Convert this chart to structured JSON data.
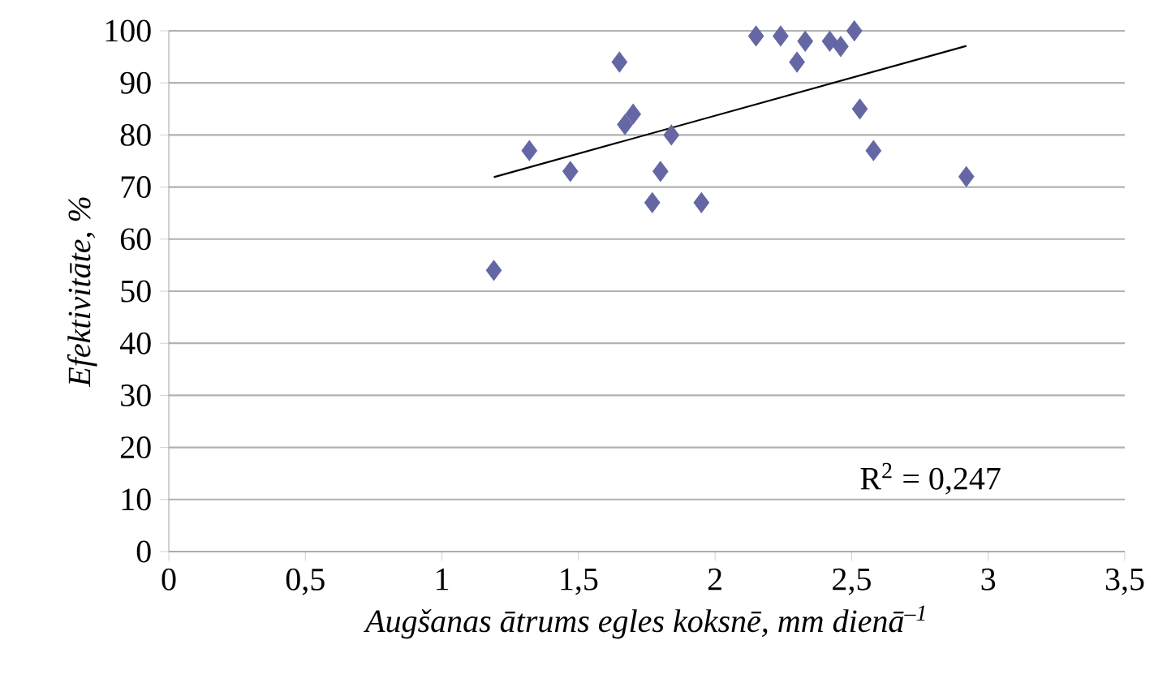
{
  "chart_data": {
    "type": "scatter",
    "xlabel": "Augšanas ātrums egles koksnē, mm dienā$^{–1}$",
    "ylabel": "Efektivitāte, %",
    "annotations": [
      "R$^{2}$ = 0,247"
    ],
    "series": [
      {
        "color": "#6567a5",
        "marker": "diamond",
        "x": [
          1.19,
          1.32,
          1.47,
          1.65,
          1.67,
          1.7,
          1.77,
          1.8,
          1.84,
          1.95,
          2.15,
          2.24,
          2.33,
          2.3,
          2.42,
          2.46,
          2.51,
          2.53,
          2.58,
          2.92
        ],
        "values": [
          54,
          77,
          73,
          94,
          82,
          84,
          67,
          73,
          80,
          67,
          99,
          99,
          98,
          94,
          98,
          97,
          100,
          85,
          77,
          72
        ]
      },
      {
        "type": "line",
        "color": "#000000",
        "marker": "none",
        "line_style": "solid",
        "x": [
          1.19,
          2.92
        ],
        "values": [
          71.9,
          97.1
        ]
      }
    ],
    "xlim": [
      0,
      3.5
    ],
    "ylim": [
      0,
      100
    ],
    "xticks": [
      0,
      {
        "value": 0.5,
        "label": "0,5"
      },
      1,
      {
        "value": 1.5,
        "label": "1,5"
      },
      2,
      {
        "value": 2.5,
        "label": "2,5"
      },
      3,
      {
        "value": 3.5,
        "label": "3,5"
      }
    ],
    "yticks": [
      0,
      10,
      20,
      30,
      40,
      50,
      60,
      70,
      80,
      90,
      100
    ],
    "grid": "y"
  }
}
